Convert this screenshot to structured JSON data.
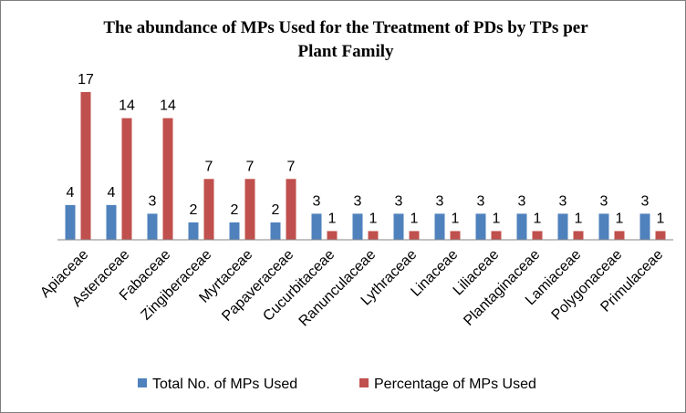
{
  "chart_data": {
    "type": "bar",
    "title": "The abundance of MPs Used for the Treatment of PDs by TPs per Plant Family",
    "categories": [
      "Apiaceae",
      "Asteraceae",
      "Fabaceae",
      "Zingiberaceae",
      "Myrtaceae",
      "Papaveraceae",
      "Cucurbitaceae",
      "Ranunculaceae",
      "Lythraceae",
      "Linaceae",
      "Liliaceae",
      "Plantaginaceae",
      "Lamiaceae",
      "Polygonaceae",
      "Primulaceae"
    ],
    "series": [
      {
        "name": "Total No. of MPs Used",
        "color": "#4f81bd",
        "values": [
          4,
          4,
          3,
          2,
          2,
          2,
          3,
          3,
          3,
          3,
          3,
          3,
          3,
          3,
          3
        ]
      },
      {
        "name": "Percentage of MPs Used",
        "color": "#c0504d",
        "values": [
          17,
          14,
          14,
          7,
          7,
          7,
          1,
          1,
          1,
          1,
          1,
          1,
          1,
          1,
          1
        ]
      }
    ],
    "ylim": [
      0,
      17
    ],
    "grid": false,
    "legend": "bottom",
    "data_labels": true
  }
}
